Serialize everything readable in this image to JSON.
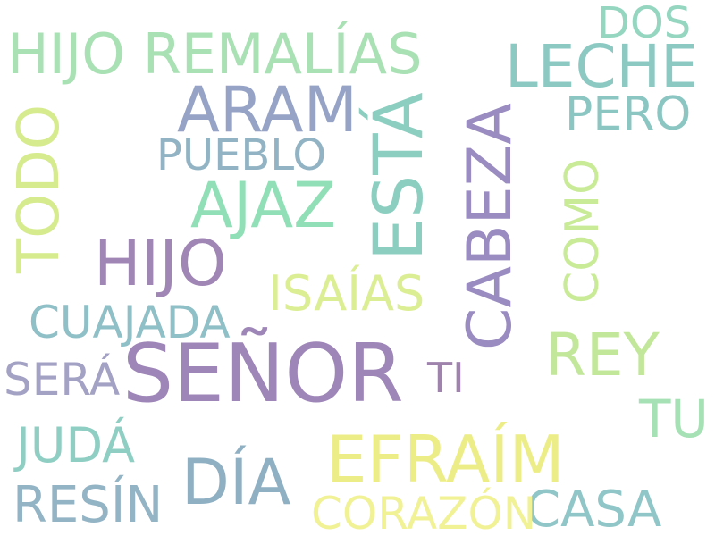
{
  "words": [
    {
      "text": "SEÑOR",
      "color": "#9e86b8"
    },
    {
      "text": "EFRAÍM",
      "color": "#eded88"
    },
    {
      "text": "DÍA",
      "color": "#8fb0c3"
    },
    {
      "text": "HIJO",
      "color": "#a086b5"
    },
    {
      "text": "HIJO REMALÍAS",
      "color": "#a9e0b4"
    },
    {
      "text": "ARAM",
      "color": "#96a3c6"
    },
    {
      "text": "AJAZ",
      "color": "#91dfb6"
    },
    {
      "text": "ESTÁ",
      "color": "#8ccfc1"
    },
    {
      "text": "CABEZA",
      "color": "#9a8cc0"
    },
    {
      "text": "TODO",
      "color": "#d5eb8d"
    },
    {
      "text": "LECHE",
      "color": "#8cc9c3"
    },
    {
      "text": "REY",
      "color": "#c2e79b"
    },
    {
      "text": "CASA",
      "color": "#90c6c7"
    },
    {
      "text": "RESÍN",
      "color": "#93b4c5"
    },
    {
      "text": "CORAZÓN",
      "color": "#f1f196"
    },
    {
      "text": "JUDÁ",
      "color": "#8fcfc3"
    },
    {
      "text": "ISAÍAS",
      "color": "#dcee94"
    },
    {
      "text": "CUAJADA",
      "color": "#8fbfc7"
    },
    {
      "text": "PUEBLO",
      "color": "#91b3c3"
    },
    {
      "text": "SERÁ",
      "color": "#a3a1c4"
    },
    {
      "text": "PERO",
      "color": "#8bc6c2"
    },
    {
      "text": "COMO",
      "color": "#c9eb98"
    },
    {
      "text": "TU",
      "color": "#a5e1b5"
    },
    {
      "text": "DOS",
      "color": "#95d6c0"
    },
    {
      "text": "TI",
      "color": "#a083ad"
    }
  ]
}
